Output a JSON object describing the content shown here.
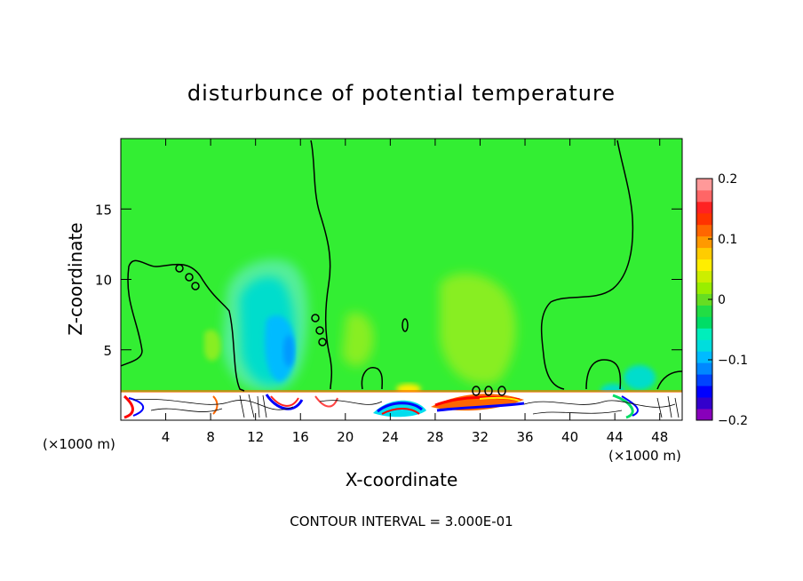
{
  "chart_data": {
    "type": "heatmap",
    "title": "disturbunce of potential temperature",
    "xlabel": "X-coordinate",
    "ylabel": "Z-coordinate",
    "x_unit": "(×1000 m)",
    "x_unit_right": "(×1000 m)",
    "xlim": [
      0,
      50
    ],
    "ylim": [
      0,
      20
    ],
    "x_ticks": [
      4,
      8,
      12,
      16,
      20,
      24,
      28,
      32,
      36,
      40,
      44,
      48
    ],
    "y_ticks": [
      5,
      10,
      15
    ],
    "footer": "CONTOUR INTERVAL = 3.000E-01",
    "colorbar": {
      "min": -0.2,
      "max": 0.2,
      "ticks": [
        0.2,
        0.1,
        0,
        -0.1,
        -0.2
      ],
      "tick_labels": [
        "0.2",
        "0.1",
        "0",
        "−0.1",
        "−0.2"
      ],
      "colors": [
        "#8800bb",
        "#3300cc",
        "#0000ff",
        "#0044ff",
        "#0088ff",
        "#00bbff",
        "#00dddd",
        "#00eebb",
        "#00dd66",
        "#22dd44",
        "#66dd22",
        "#99ee00",
        "#ccee00",
        "#ffee00",
        "#ffcc00",
        "#ff9900",
        "#ff6600",
        "#ff3300",
        "#ff2222",
        "#ff6666",
        "#ff9999"
      ]
    },
    "contour_labels": [
      {
        "text": "0.00",
        "x": 6.1,
        "z": 10.2
      },
      {
        "text": "0.00",
        "x": 17.6,
        "z": 6.7
      },
      {
        "text": "0.00",
        "x": 33.0,
        "z": 2.2
      }
    ],
    "colors": {
      "background_field": "#33ee33",
      "frame": "#000000"
    }
  }
}
